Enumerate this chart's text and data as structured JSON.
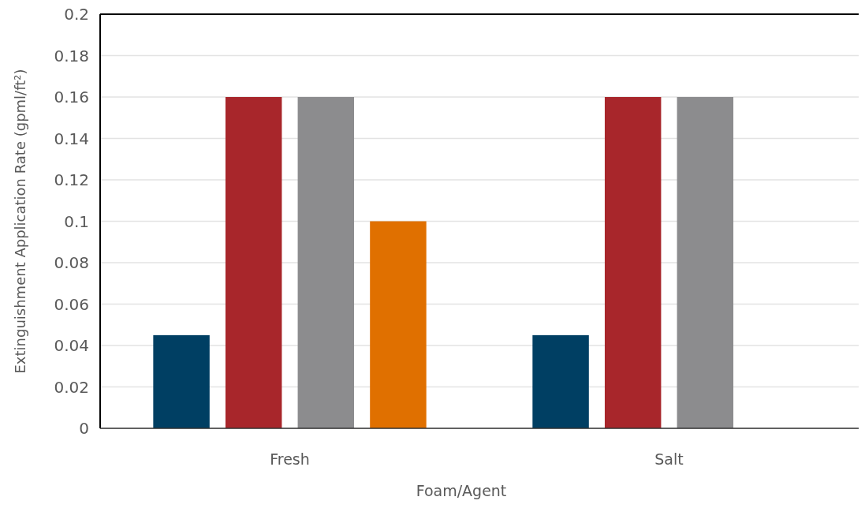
{
  "chart_data": {
    "type": "bar",
    "xlabel": "Foam/Agent",
    "ylabel": "Extinguishment Application Rate  (gpml/ft²)",
    "categories": [
      "Fresh",
      "Salt"
    ],
    "series": [
      {
        "color": "#003f63",
        "values": [
          0.045,
          0.045
        ]
      },
      {
        "color": "#a8262b",
        "values": [
          0.16,
          0.16
        ]
      },
      {
        "color": "#8c8c8e",
        "values": [
          0.16,
          0.16
        ]
      },
      {
        "color": "#e07000",
        "values": [
          0.1,
          null
        ]
      }
    ],
    "ylim": [
      0,
      0.2
    ],
    "yticks": [
      0,
      0.02,
      0.04,
      0.06,
      0.08,
      0.1,
      0.12,
      0.14,
      0.16,
      0.18,
      0.2
    ],
    "grid": "y"
  }
}
